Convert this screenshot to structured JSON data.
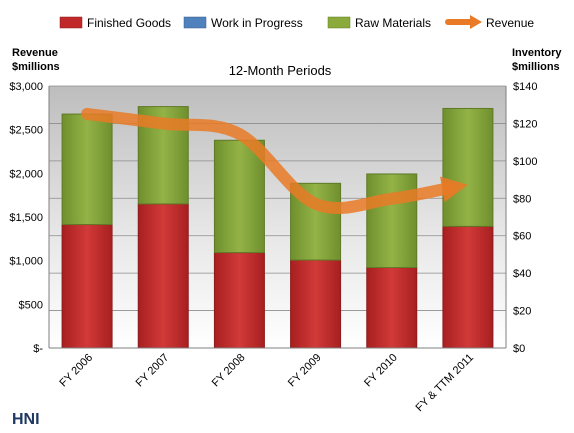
{
  "chart_data": {
    "type": "bar",
    "subtitle": "12-Month Periods",
    "company": "HNI",
    "categories": [
      "FY 2006",
      "FY 2007",
      "FY 2008",
      "FY 2009",
      "FY 2010",
      "FY & TTM 2011"
    ],
    "series": [
      {
        "name": "Finished Goods",
        "axis": "inventory",
        "kind": "stacked-bar",
        "color": "#c0282a",
        "values": [
          66,
          77,
          51,
          47,
          43,
          65
        ]
      },
      {
        "name": "Work in Progress",
        "axis": "inventory",
        "kind": "stacked-bar",
        "color": "#4f81bd",
        "values": [
          0,
          0,
          0,
          0,
          0,
          0
        ]
      },
      {
        "name": "Raw Materials",
        "axis": "inventory",
        "kind": "stacked-bar",
        "color": "#8aab3c",
        "values": [
          59,
          52,
          60,
          41,
          50,
          63
        ]
      },
      {
        "name": "Revenue",
        "axis": "revenue",
        "kind": "line",
        "color": "#e97a26",
        "values": [
          2680,
          2570,
          2450,
          1650,
          1710,
          1870
        ]
      }
    ],
    "y_left": {
      "label_line1": "Revenue",
      "label_line2": "$millions",
      "range": [
        0,
        3000
      ],
      "ticks": [
        "$-",
        "$500",
        "$1,000",
        "$1,500",
        "$2,000",
        "$2,500",
        "$3,000"
      ]
    },
    "y_right": {
      "label_line1": "Inventory",
      "label_line2": "$millions",
      "range": [
        0,
        140
      ],
      "ticks": [
        "$0",
        "$20",
        "$40",
        "$60",
        "$80",
        "$100",
        "$120",
        "$140"
      ]
    },
    "grid": true,
    "legend_position": "top"
  }
}
